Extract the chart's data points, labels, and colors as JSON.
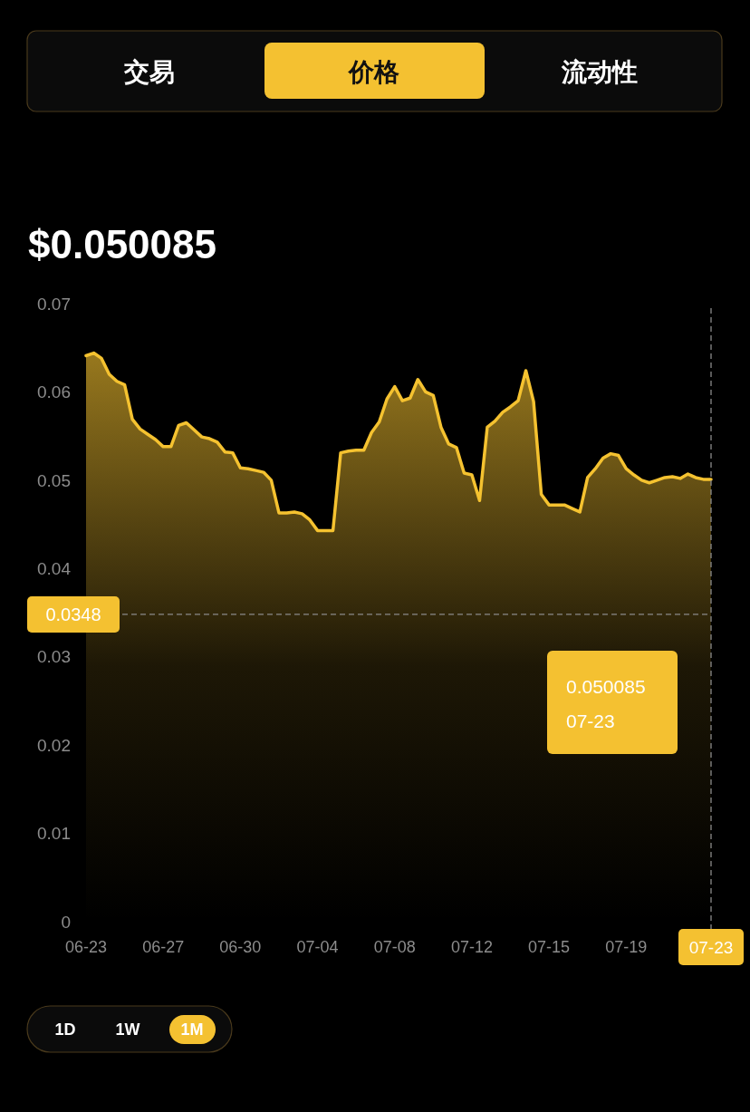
{
  "chart_data": {
    "type": "area",
    "title": "$0.050085",
    "categories": [
      "06-23",
      null,
      null,
      null,
      null,
      null,
      null,
      null,
      null,
      null,
      "06-27",
      null,
      null,
      null,
      null,
      null,
      null,
      null,
      null,
      null,
      "06-30",
      null,
      null,
      null,
      null,
      null,
      null,
      null,
      null,
      null,
      "07-04",
      null,
      null,
      null,
      null,
      null,
      null,
      null,
      null,
      null,
      "07-08",
      null,
      null,
      null,
      null,
      null,
      null,
      null,
      null,
      null,
      "07-12",
      null,
      null,
      null,
      null,
      null,
      null,
      null,
      null,
      null,
      "07-15",
      null,
      null,
      null,
      null,
      null,
      null,
      null,
      null,
      null,
      "07-19",
      null,
      null,
      null,
      null,
      null,
      null,
      null,
      null,
      null,
      null,
      "07-23"
    ],
    "series": [
      {
        "color": "#f5c230",
        "values": [
          0.0641,
          0.0644,
          0.0638,
          0.062,
          0.0612,
          0.0608,
          0.0569,
          0.0558,
          0.0552,
          0.0546,
          0.0538,
          0.0538,
          0.0562,
          0.0565,
          0.0557,
          0.0549,
          0.0547,
          0.0543,
          0.0532,
          0.0531,
          0.0514,
          0.0513,
          0.0511,
          0.0509,
          0.05,
          0.0463,
          0.0463,
          0.0464,
          0.0462,
          0.0455,
          0.0443,
          0.0443,
          0.0443,
          0.0531,
          0.0533,
          0.0534,
          0.0534,
          0.0554,
          0.0566,
          0.0592,
          0.0606,
          0.059,
          0.0593,
          0.0614,
          0.06,
          0.0596,
          0.056,
          0.0541,
          0.0537,
          0.0508,
          0.0506,
          0.0477,
          0.056,
          0.0567,
          0.0577,
          0.0583,
          0.059,
          0.0624,
          0.0589,
          0.0484,
          0.0472,
          0.0472,
          0.0472,
          0.0468,
          0.0464,
          0.0503,
          0.0513,
          0.0525,
          0.053,
          0.0528,
          0.0513,
          0.0506,
          0.05,
          0.0497,
          0.05,
          0.0503,
          0.0504,
          0.0502,
          0.0507,
          0.0503,
          0.0501,
          0.0501
        ]
      }
    ],
    "ylim": [
      0,
      0.07
    ],
    "yticks": [
      0,
      0.01,
      0.02,
      0.03,
      0.04,
      0.05,
      0.06,
      0.07
    ],
    "grid": false,
    "ref_lines": [
      {
        "axis": "y",
        "value": 0.0348,
        "label": "0.0348",
        "line_style": "dashed",
        "color": "#8a8a8a"
      },
      {
        "axis": "x",
        "value": "07-23",
        "line_style": "dashed",
        "color": "#8a8a8a"
      }
    ],
    "annotations": [
      "交易",
      "价格",
      "流动性",
      "1D",
      "1W",
      "1M",
      "0.050085",
      "07-23"
    ]
  }
}
